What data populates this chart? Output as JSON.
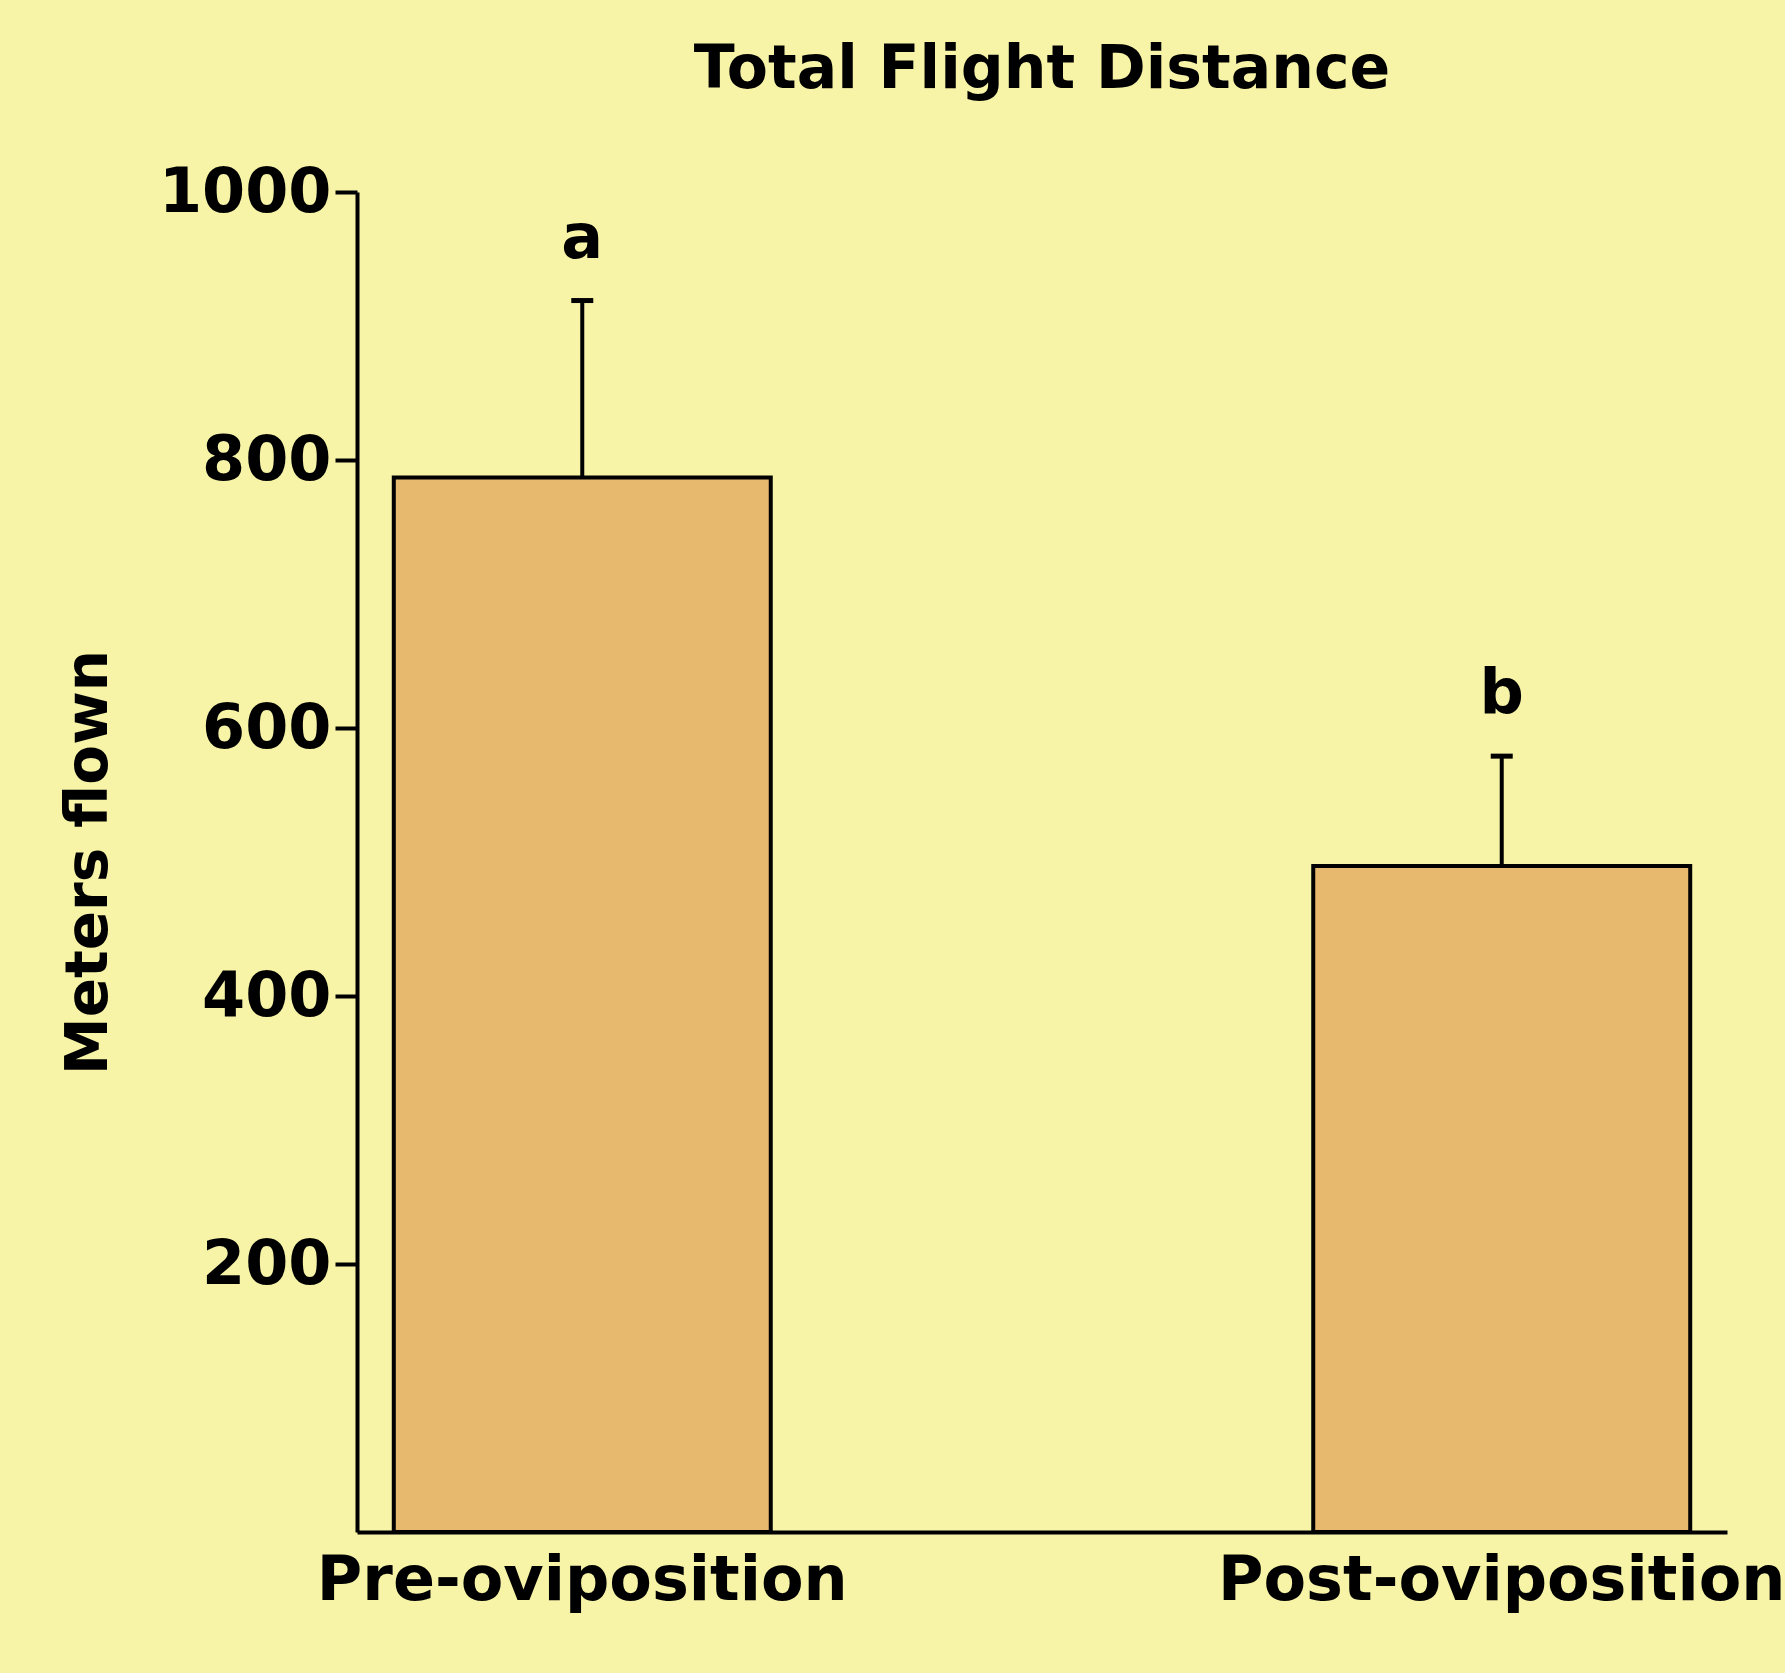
{
  "chart_data": {
    "type": "bar",
    "title": "Total Flight Distance",
    "ylabel": "Meters flown",
    "categories": [
      "Pre-oviposition",
      "Post-oviposition"
    ],
    "values": [
      787,
      497
    ],
    "errors": [
      [
        787,
        919
      ],
      [
        497,
        579
      ]
    ],
    "color": "#e6b96e",
    "ylim": [
      0,
      1000
    ],
    "yticks": [
      200,
      400,
      600,
      800,
      1000
    ],
    "annotations": [
      "a",
      "b"
    ]
  }
}
